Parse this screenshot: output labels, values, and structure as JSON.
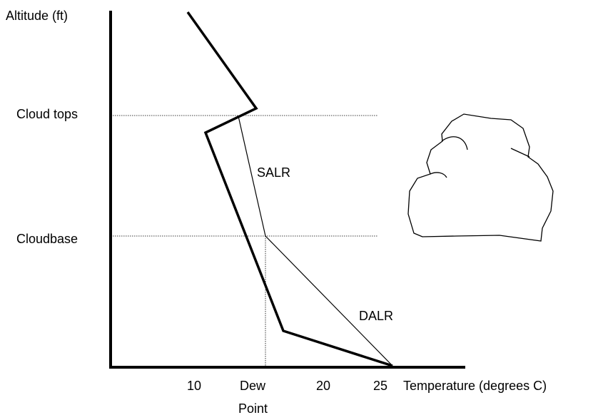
{
  "axes": {
    "y_label": "Altitude (ft)",
    "x_label": "Temperature (degrees C)"
  },
  "levels": {
    "cloud_tops": "Cloud tops",
    "cloudbase": "Cloudbase"
  },
  "lapse_rates": {
    "saturated": "SALR",
    "dry": "DALR"
  },
  "x_labels": {
    "ten": "10",
    "dew_point": [
      "Dew",
      "Point"
    ],
    "twenty": "20",
    "twenty_five": "25"
  }
}
